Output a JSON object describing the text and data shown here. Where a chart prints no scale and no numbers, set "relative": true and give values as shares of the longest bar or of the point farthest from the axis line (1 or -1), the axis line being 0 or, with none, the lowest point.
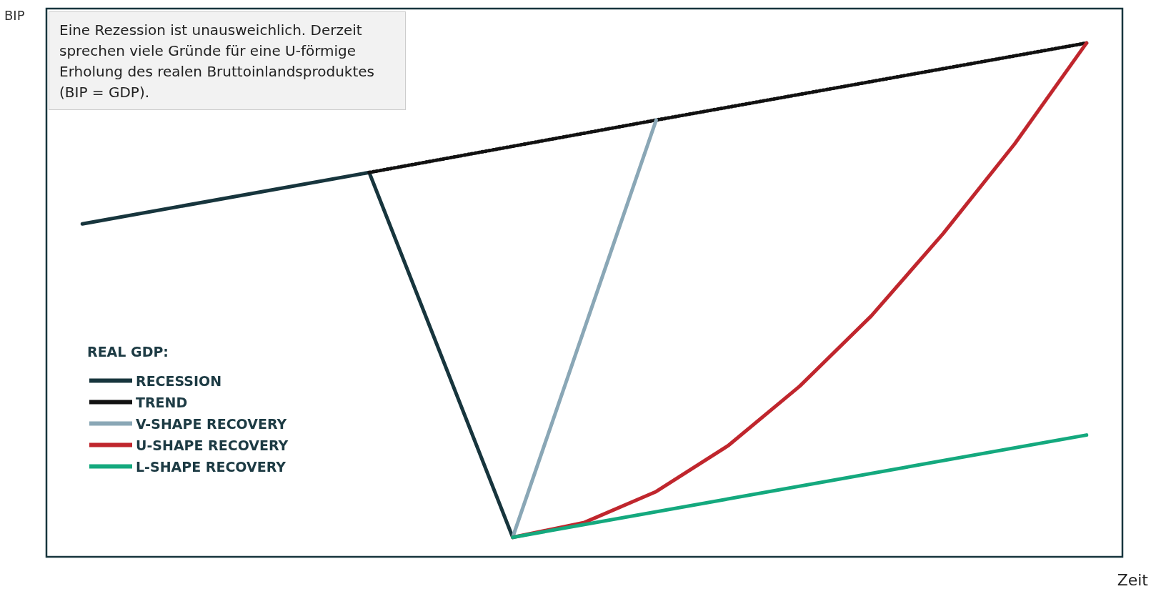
{
  "chart_data": {
    "type": "line",
    "relative": true,
    "xlabel": "Zeit",
    "ylabel": "BIP",
    "legend_title": "REAL GDP:",
    "legend": "bottom left",
    "marker": "none",
    "grid": false,
    "annotations": [
      "Eine Rezession ist unausweichlich. Derzeit sprechen viele Gründe für eine U-förmige Erholung des realen Bruttoinlandsproduktes (BIP = GDP)."
    ],
    "categories": [
      null,
      null,
      null,
      null,
      null,
      null,
      null,
      null,
      null,
      null,
      null,
      null,
      null,
      null,
      null
    ],
    "series": [
      {
        "name": "RECESSION",
        "color": "#17353d",
        "line_style": "solid",
        "values": [
          0.648,
          null,
          null,
          null,
          0.748,
          null,
          0.038,
          null,
          null,
          null,
          null,
          null,
          null,
          null,
          null
        ]
      },
      {
        "name": "TREND",
        "color": "#111111",
        "line_style": "dotted",
        "values": [
          null,
          null,
          null,
          null,
          0.748,
          null,
          null,
          null,
          0.85,
          null,
          null,
          null,
          null,
          null,
          1
        ]
      },
      {
        "name": "V-SHAPE RECOVERY",
        "color": "#8aa7b6",
        "line_style": "solid",
        "values": [
          null,
          null,
          null,
          null,
          null,
          null,
          0.038,
          null,
          0.85,
          null,
          null,
          null,
          null,
          null,
          null
        ]
      },
      {
        "name": "U-SHAPE RECOVERY",
        "color": "#c0262d",
        "line_style": "solid",
        "values": [
          null,
          null,
          null,
          null,
          null,
          null,
          0.038,
          0.067,
          0.127,
          0.216,
          0.332,
          0.469,
          0.629,
          0.804,
          1
        ]
      },
      {
        "name": "L-SHAPE RECOVERY",
        "color": "#14a97e",
        "line_style": "solid",
        "values": [
          null,
          null,
          null,
          null,
          null,
          null,
          0.038,
          null,
          null,
          null,
          null,
          null,
          null,
          null,
          0.237
        ]
      }
    ]
  }
}
